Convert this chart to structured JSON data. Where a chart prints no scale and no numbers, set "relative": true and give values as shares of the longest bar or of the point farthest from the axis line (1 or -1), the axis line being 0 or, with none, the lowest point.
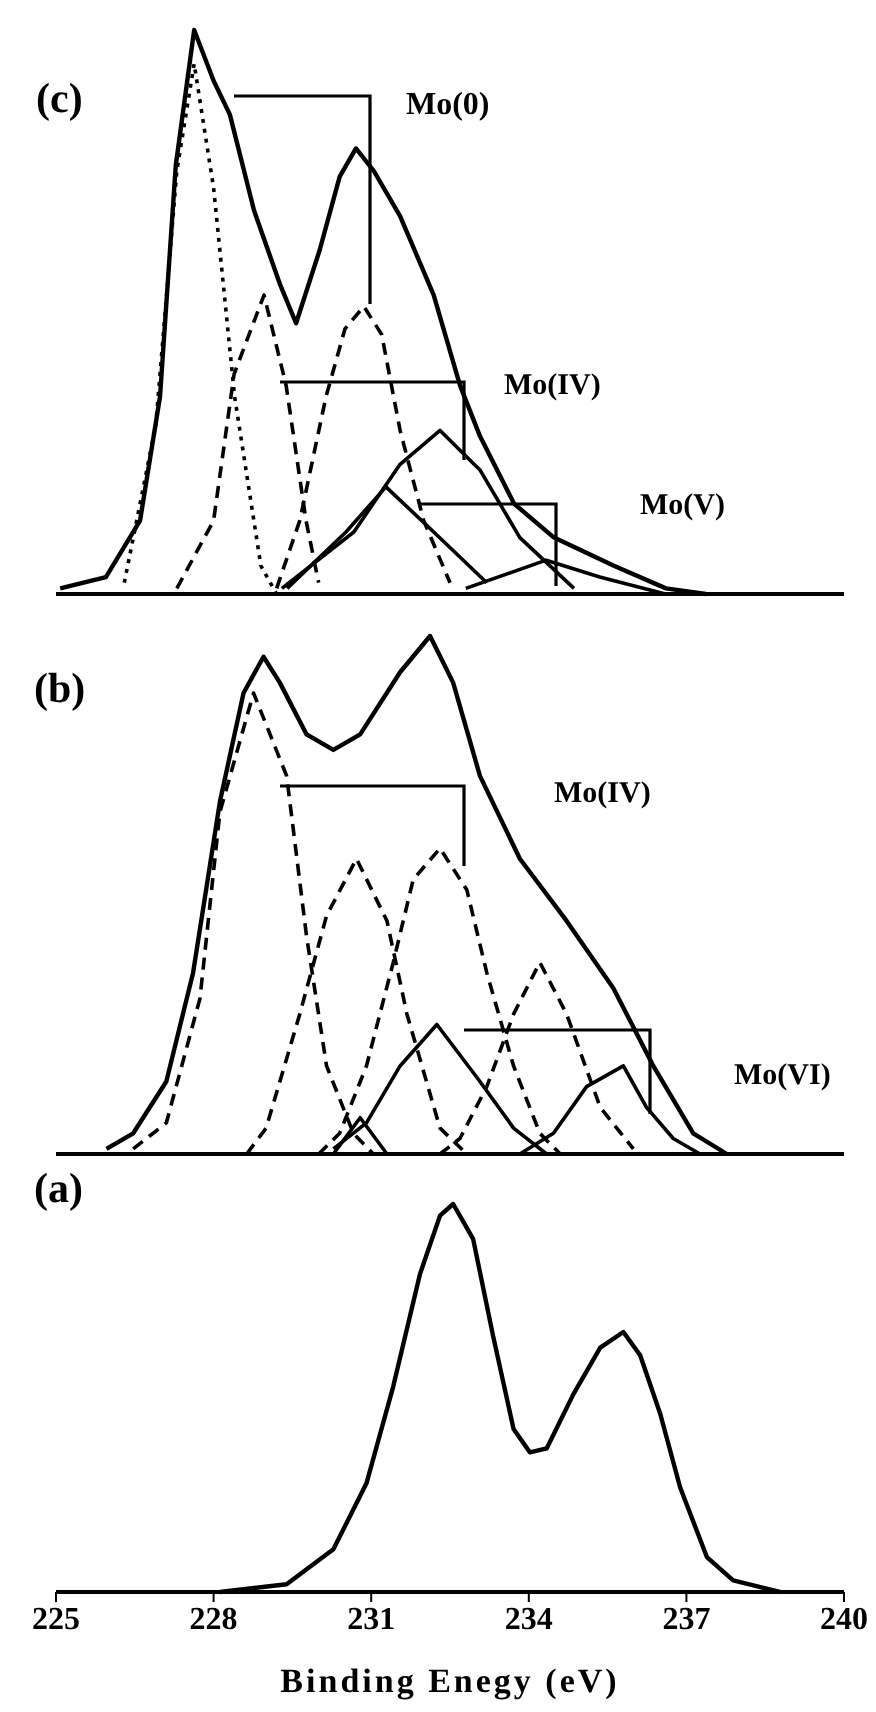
{
  "chart_data": [
    {
      "type": "line",
      "relative": true,
      "xlim": [
        225,
        240
      ],
      "tick_labels": false,
      "marker": "none",
      "annotations": [
        "(c)",
        "Mo(0)",
        "Mo(IV)",
        "Mo(V)"
      ],
      "series": [
        {
          "type": "line",
          "line_style": "solid",
          "color": "#000000",
          "x": [
            225.08,
            225.95,
            226.6,
            226.98,
            227.28,
            227.63,
            228.0,
            228.31,
            228.77,
            229.26,
            229.57,
            230.02,
            230.4,
            230.71,
            231.05,
            231.55,
            232.19,
            232.69,
            233.07,
            233.72,
            234.48,
            235.62,
            236.61,
            237.37
          ],
          "values": [
            0.01,
            0.03,
            0.13,
            0.35,
            0.76,
            1.0,
            0.91,
            0.85,
            0.68,
            0.55,
            0.48,
            0.61,
            0.74,
            0.79,
            0.75,
            0.67,
            0.53,
            0.37,
            0.28,
            0.16,
            0.1,
            0.05,
            0.01,
            0
          ]
        },
        {
          "type": "line",
          "line_style": "dotted",
          "color": "#000000",
          "x": [
            226.3,
            226.9,
            227.3,
            227.63,
            228.0,
            228.4,
            228.9,
            229.2
          ],
          "values": [
            0.02,
            0.3,
            0.75,
            0.94,
            0.72,
            0.35,
            0.05,
            0
          ]
        },
        {
          "type": "line",
          "line_style": "dashed",
          "color": "#000000",
          "x": [
            229.2,
            229.64,
            230.14,
            230.5,
            230.86,
            231.2,
            231.55,
            232.0,
            232.5
          ],
          "values": [
            0.01,
            0.13,
            0.35,
            0.47,
            0.51,
            0.46,
            0.29,
            0.13,
            0.02
          ]
        },
        {
          "type": "line",
          "line_style": "dashed",
          "color": "#000000",
          "x": [
            227.3,
            228.0,
            228.39,
            228.96,
            229.38,
            229.76,
            230.0
          ],
          "values": [
            0.01,
            0.13,
            0.39,
            0.53,
            0.37,
            0.13,
            0.02
          ]
        },
        {
          "type": "line",
          "line_style": "solid",
          "color": "#000000",
          "x": [
            229.3,
            230.67,
            231.55,
            232.31,
            233.07,
            233.83,
            234.86
          ],
          "values": [
            0.01,
            0.11,
            0.23,
            0.29,
            0.22,
            0.1,
            0.01
          ]
        },
        {
          "type": "line",
          "line_style": "solid",
          "color": "#000000",
          "x": [
            229.4,
            230.52,
            231.28,
            232.19,
            233.2
          ],
          "values": [
            0.01,
            0.11,
            0.19,
            0.11,
            0.02
          ]
        },
        {
          "type": "line",
          "line_style": "solid",
          "color": "#000000",
          "x": [
            232.8,
            234.33,
            235.35,
            236.6
          ],
          "values": [
            0.01,
            0.06,
            0.03,
            0
          ]
        }
      ]
    },
    {
      "type": "line",
      "relative": true,
      "xlim": [
        225,
        240
      ],
      "tick_labels": false,
      "marker": "none",
      "annotations": [
        "(b)",
        "Mo(IV)",
        "Mo(VI)"
      ],
      "series": [
        {
          "type": "line",
          "line_style": "solid",
          "color": "#000000",
          "x": [
            225.96,
            226.47,
            227.1,
            227.61,
            228.12,
            228.57,
            228.95,
            229.26,
            229.77,
            230.28,
            230.79,
            231.55,
            232.12,
            232.56,
            233.07,
            233.83,
            234.72,
            235.61,
            236.37,
            237.13,
            237.77
          ],
          "values": [
            0.01,
            0.04,
            0.14,
            0.35,
            0.68,
            0.89,
            0.96,
            0.91,
            0.81,
            0.78,
            0.81,
            0.93,
            1.0,
            0.91,
            0.73,
            0.57,
            0.45,
            0.32,
            0.17,
            0.04,
            0
          ]
        },
        {
          "type": "line",
          "line_style": "dashed",
          "color": "#000000",
          "x": [
            226.47,
            227.1,
            227.74,
            228.12,
            228.76,
            229.39,
            229.77,
            230.15,
            230.66,
            231.04
          ],
          "values": [
            0.01,
            0.06,
            0.3,
            0.66,
            0.89,
            0.73,
            0.42,
            0.17,
            0.04,
            0
          ]
        },
        {
          "type": "line",
          "line_style": "dashed",
          "color": "#000000",
          "x": [
            228.63,
            229.0,
            229.64,
            230.15,
            230.72,
            231.3,
            231.68,
            232.31,
            232.82
          ],
          "values": [
            0,
            0.05,
            0.27,
            0.46,
            0.57,
            0.45,
            0.27,
            0.05,
            0
          ]
        },
        {
          "type": "line",
          "line_style": "dashed",
          "color": "#000000",
          "x": [
            230.0,
            230.4,
            230.91,
            231.42,
            231.8,
            232.31,
            232.82,
            233.2,
            233.71,
            234.21,
            234.6
          ],
          "values": [
            0,
            0.04,
            0.17,
            0.37,
            0.53,
            0.59,
            0.51,
            0.35,
            0.17,
            0.04,
            0
          ]
        },
        {
          "type": "line",
          "line_style": "dashed",
          "color": "#000000",
          "x": [
            232.31,
            232.69,
            233.2,
            233.71,
            234.21,
            234.72,
            235.36,
            235.99
          ],
          "values": [
            0,
            0.03,
            0.13,
            0.27,
            0.37,
            0.27,
            0.09,
            0.01
          ]
        },
        {
          "type": "line",
          "line_style": "solid",
          "color": "#000000",
          "x": [
            230.28,
            230.91,
            231.55,
            232.25,
            233.07,
            233.71,
            234.34
          ],
          "values": [
            0.01,
            0.06,
            0.17,
            0.25,
            0.14,
            0.05,
            0
          ]
        },
        {
          "type": "line",
          "line_style": "solid",
          "color": "#000000",
          "x": [
            233.83,
            234.47,
            235.1,
            235.8,
            236.24,
            236.75,
            237.26
          ],
          "values": [
            0,
            0.04,
            0.13,
            0.17,
            0.09,
            0.03,
            0
          ]
        },
        {
          "type": "line",
          "line_style": "solid",
          "color": "#000000",
          "x": [
            230.28,
            230.79,
            231.3
          ],
          "values": [
            0,
            0.07,
            0
          ]
        }
      ]
    },
    {
      "type": "line",
      "relative": true,
      "xlim": [
        225,
        240
      ],
      "xticks": [
        225,
        228,
        231,
        234,
        237,
        240
      ],
      "tick_labels": "x",
      "xlabel": "Binding Enegy (eV)",
      "marker": "none",
      "annotations": [
        "(a)"
      ],
      "series": [
        {
          "line_style": "solid",
          "color": "#000000",
          "x": [
            228.12,
            229.39,
            230.28,
            230.91,
            231.42,
            231.93,
            232.31,
            232.56,
            232.94,
            233.32,
            233.71,
            234.02,
            234.34,
            234.85,
            235.36,
            235.8,
            236.12,
            236.5,
            236.88,
            237.39,
            237.89,
            238.78
          ],
          "values": [
            0,
            0.02,
            0.11,
            0.28,
            0.53,
            0.82,
            0.97,
            1.0,
            0.91,
            0.66,
            0.42,
            0.36,
            0.37,
            0.51,
            0.63,
            0.67,
            0.61,
            0.46,
            0.27,
            0.09,
            0.03,
            0
          ]
        }
      ]
    }
  ]
}
